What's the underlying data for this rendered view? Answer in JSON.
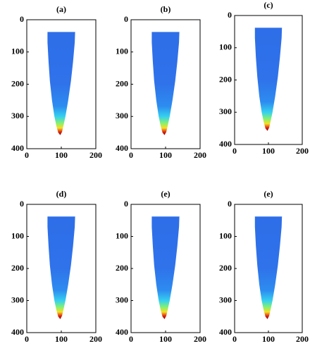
{
  "chart_data": [
    {
      "type": "heatmap-image",
      "title": "(a)",
      "xlim": [
        0,
        200
      ],
      "ylim": [
        400,
        0
      ],
      "xticks": [
        0,
        100,
        200
      ],
      "yticks": [
        0,
        100,
        200,
        300,
        400
      ]
    },
    {
      "type": "heatmap-image",
      "title": "(b)",
      "xlim": [
        0,
        200
      ],
      "ylim": [
        400,
        0
      ],
      "xticks": [
        0,
        100,
        200
      ],
      "yticks": [
        0,
        100,
        200,
        300,
        400
      ]
    },
    {
      "type": "heatmap-image",
      "title": "(c)",
      "xlim": [
        0,
        200
      ],
      "ylim": [
        400,
        0
      ],
      "xticks": [
        0,
        100,
        200
      ],
      "yticks": [
        0,
        100,
        200,
        300,
        400
      ]
    },
    {
      "type": "heatmap-image",
      "title": "(d)",
      "xlim": [
        0,
        200
      ],
      "ylim": [
        400,
        0
      ],
      "xticks": [
        0,
        100,
        200
      ],
      "yticks": [
        0,
        100,
        200,
        300,
        400
      ]
    },
    {
      "type": "heatmap-image",
      "title": "(e)",
      "xlim": [
        0,
        200
      ],
      "ylim": [
        400,
        0
      ],
      "xticks": [
        0,
        100,
        200
      ],
      "yticks": [
        0,
        100,
        200,
        300,
        400
      ]
    },
    {
      "type": "heatmap-image",
      "title": "(e)",
      "xlim": [
        0,
        200
      ],
      "ylim": [
        400,
        0
      ],
      "xticks": [
        0,
        100,
        200
      ],
      "yticks": [
        0,
        100,
        200,
        300,
        400
      ]
    }
  ]
}
